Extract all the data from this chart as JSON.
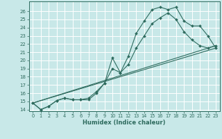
{
  "xlabel": "Humidex (Indice chaleur)",
  "ylabel": "",
  "bg_color": "#c8e8e8",
  "grid_color": "#ffffff",
  "line_color": "#2e6b5e",
  "xlim": [
    -0.5,
    23.5
  ],
  "ylim": [
    13.8,
    27.2
  ],
  "xticks": [
    0,
    1,
    2,
    3,
    4,
    5,
    6,
    7,
    8,
    9,
    10,
    11,
    12,
    13,
    14,
    15,
    16,
    17,
    18,
    19,
    20,
    21,
    22,
    23
  ],
  "yticks": [
    14,
    15,
    16,
    17,
    18,
    19,
    20,
    21,
    22,
    23,
    24,
    25,
    26
  ],
  "lines": [
    {
      "x": [
        0,
        1,
        2,
        3,
        4,
        5,
        6,
        7,
        8,
        9,
        10,
        11,
        12,
        13,
        14,
        15,
        16,
        17,
        18,
        19,
        20,
        21,
        22,
        23
      ],
      "y": [
        14.8,
        14.0,
        14.4,
        15.1,
        15.4,
        15.2,
        15.2,
        15.2,
        16.0,
        17.2,
        20.3,
        18.5,
        20.5,
        23.3,
        24.8,
        26.2,
        26.5,
        26.2,
        26.5,
        24.8,
        24.2,
        24.2,
        23.0,
        21.5
      ]
    },
    {
      "x": [
        0,
        1,
        2,
        3,
        4,
        5,
        6,
        7,
        8,
        9,
        10,
        11,
        12,
        13,
        14,
        15,
        16,
        17,
        18,
        19,
        20,
        21,
        22,
        23
      ],
      "y": [
        14.8,
        14.0,
        14.4,
        15.1,
        15.4,
        15.2,
        15.2,
        15.4,
        16.2,
        17.2,
        19.0,
        18.5,
        19.5,
        21.5,
        23.0,
        24.5,
        25.2,
        25.8,
        25.0,
        23.5,
        22.5,
        21.8,
        21.5,
        21.8
      ]
    },
    {
      "x": [
        0,
        23
      ],
      "y": [
        14.8,
        21.5
      ]
    },
    {
      "x": [
        0,
        23
      ],
      "y": [
        14.8,
        21.8
      ]
    }
  ]
}
